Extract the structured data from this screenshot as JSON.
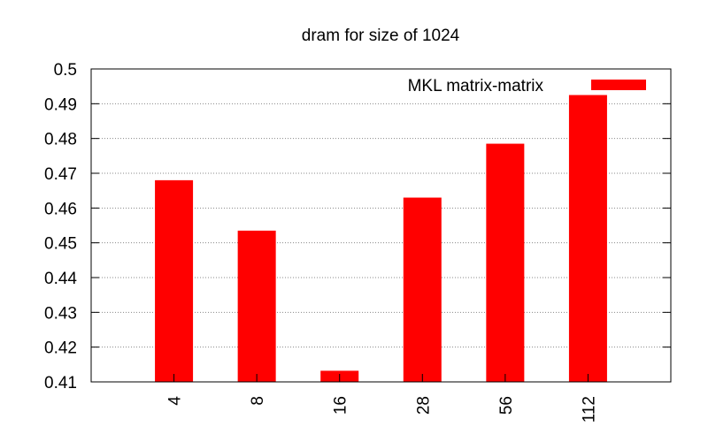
{
  "chart_data": {
    "type": "bar",
    "title": "dram for size of 1024",
    "xlabel": "",
    "ylabel": "",
    "categories": [
      "4",
      "8",
      "16",
      "28",
      "56",
      "112"
    ],
    "series": [
      {
        "name": "MKL matrix-matrix",
        "values": [
          0.468,
          0.4535,
          0.4132,
          0.463,
          0.4785,
          0.4925
        ]
      }
    ],
    "ylim": [
      0.41,
      0.5
    ],
    "yticks": [
      "0.41",
      "0.42",
      "0.43",
      "0.44",
      "0.45",
      "0.46",
      "0.47",
      "0.48",
      "0.49",
      "0.5"
    ],
    "grid": true,
    "legend_position": "top-right",
    "colors": {
      "bar": "#ff0000",
      "grid": "#888888",
      "axis": "#000000"
    }
  }
}
